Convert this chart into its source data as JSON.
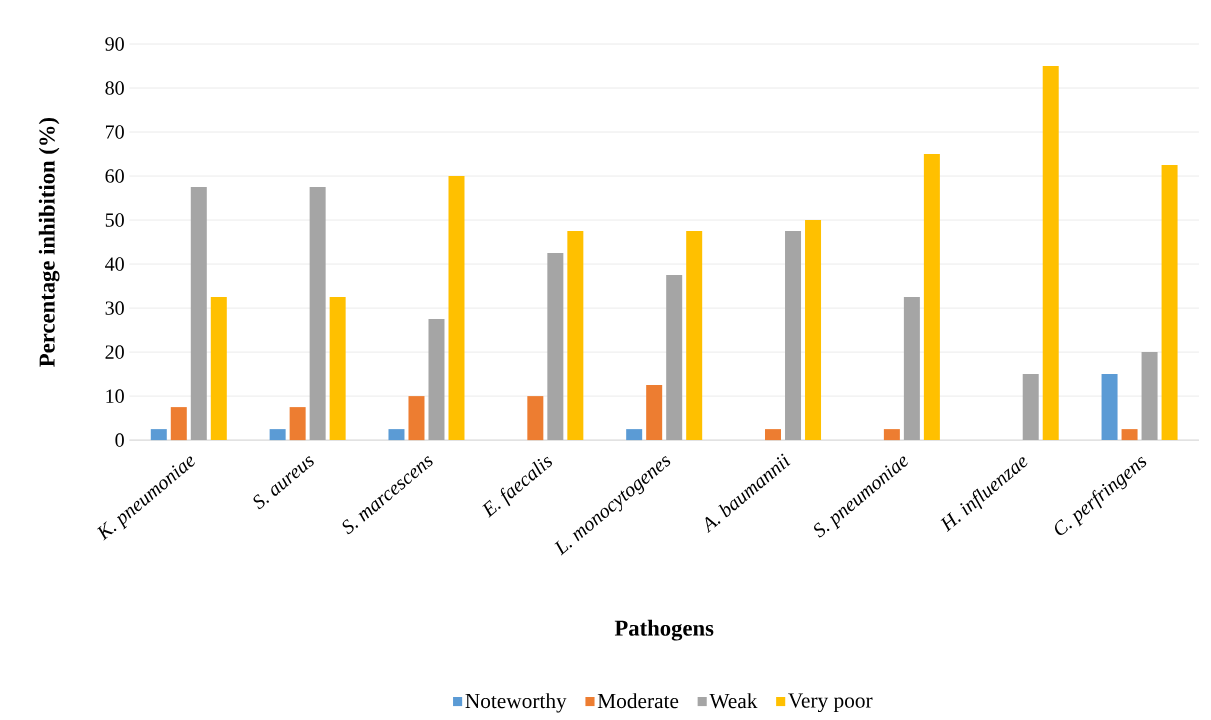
{
  "chart_data": {
    "type": "bar",
    "xlabel": "Pathogens",
    "ylabel": "Percentage inhibition (%)",
    "categories": [
      "K. pneumoniae",
      "S. aureus",
      "S. marcescens",
      "E. faecalis",
      "L. monocytogenes",
      "A. baumannii",
      "S. pneumoniae",
      "H. influenzae",
      "C. perfringens"
    ],
    "series": [
      {
        "name": "Noteworthy",
        "color": "#5b9bd5",
        "values": [
          2.5,
          2.5,
          2.5,
          0,
          2.5,
          0,
          0,
          0,
          15
        ]
      },
      {
        "name": "Moderate",
        "color": "#ed7d31",
        "values": [
          7.5,
          7.5,
          10,
          10,
          12.5,
          2.5,
          2.5,
          0,
          2.5
        ]
      },
      {
        "name": "Weak",
        "color": "#a5a5a5",
        "values": [
          57.5,
          57.5,
          27.5,
          42.5,
          37.5,
          47.5,
          32.5,
          15,
          20
        ]
      },
      {
        "name": "Very poor",
        "color": "#ffc000",
        "values": [
          32.5,
          32.5,
          60,
          47.5,
          47.5,
          50,
          65,
          85,
          62.5
        ]
      }
    ],
    "ylim": [
      0,
      90
    ],
    "yticks": [
      0,
      10,
      20,
      30,
      40,
      50,
      60,
      70,
      80,
      90
    ],
    "grid": "y",
    "legend": "bottom"
  }
}
